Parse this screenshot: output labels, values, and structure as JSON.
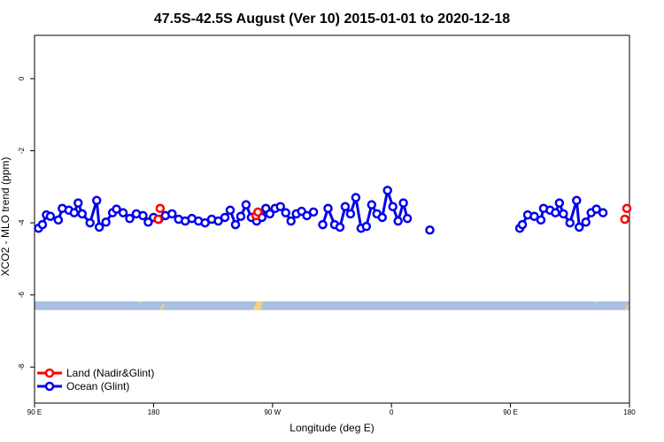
{
  "chart_data": {
    "type": "scatter",
    "title": "47.5S-42.5S August (Ver 10)   2015-01-01 to 2020-12-18",
    "xlabel": "Longitude (deg E)",
    "ylabel": "XCO2 - MLO trend (ppm)",
    "xticks": [
      "90 E",
      "180",
      "90 W",
      "0",
      "90 E",
      "180"
    ],
    "yticks": [
      "0",
      "-2",
      "-4",
      "-6",
      "-8"
    ],
    "ylim": [
      -9.0,
      1.2
    ],
    "legend_position": "bottom-left",
    "series": [
      {
        "name": "Land (Nadir&Glint)",
        "color": "#ff0000",
        "points": [
          [
            -176.5,
            -3.9
          ],
          [
            -175.0,
            -3.6
          ],
          [
            -102.5,
            -3.8
          ],
          [
            -101.0,
            -3.7
          ],
          [
            176.5,
            -3.9
          ],
          [
            178.0,
            -3.6
          ]
        ]
      },
      {
        "name": "Ocean (Glint)",
        "color": "#0000ee",
        "segments": [
          [
            [
              93,
              -4.15
            ],
            [
              96,
              -4.05
            ],
            [
              99,
              -3.78
            ],
            [
              102,
              -3.82
            ],
            [
              108,
              -3.92
            ],
            [
              111,
              -3.6
            ],
            [
              116,
              -3.65
            ],
            [
              120,
              -3.72
            ],
            [
              123,
              -3.45
            ],
            [
              126,
              -3.75
            ],
            [
              132,
              -4.0
            ],
            [
              137,
              -3.38
            ],
            [
              139,
              -4.12
            ],
            [
              144,
              -3.98
            ],
            [
              149,
              -3.72
            ],
            [
              152,
              -3.62
            ],
            [
              157,
              -3.72
            ],
            [
              162,
              -3.88
            ],
            [
              167,
              -3.75
            ],
            [
              172,
              -3.8
            ],
            [
              176,
              -3.98
            ],
            [
              180,
              -3.85
            ],
            [
              -176,
              -3.9
            ],
            [
              -171,
              -3.8
            ],
            [
              -166,
              -3.75
            ],
            [
              -161,
              -3.9
            ],
            [
              -156,
              -3.95
            ],
            [
              -151,
              -3.88
            ],
            [
              -146,
              -3.95
            ],
            [
              -141,
              -4.0
            ],
            [
              -136,
              -3.9
            ],
            [
              -131,
              -3.95
            ],
            [
              -126,
              -3.85
            ],
            [
              -122,
              -3.65
            ],
            [
              -118,
              -4.05
            ],
            [
              -114,
              -3.82
            ],
            [
              -110,
              -3.5
            ],
            [
              -106,
              -3.85
            ],
            [
              -102,
              -3.95
            ],
            [
              -98,
              -3.85
            ],
            [
              -95,
              -3.6
            ],
            [
              -92,
              -3.75
            ],
            [
              -88,
              -3.6
            ],
            [
              -84,
              -3.55
            ],
            [
              -80,
              -3.72
            ],
            [
              -76,
              -3.95
            ],
            [
              -72,
              -3.75
            ],
            [
              -68,
              -3.68
            ],
            [
              -64,
              -3.8
            ],
            [
              -59,
              -3.7
            ]
          ],
          [
            [
              -52,
              -4.05
            ],
            [
              -48,
              -3.6
            ],
            [
              -43,
              -4.05
            ],
            [
              -39,
              -4.12
            ],
            [
              -35,
              -3.55
            ],
            [
              -31,
              -3.75
            ],
            [
              -27,
              -3.3
            ],
            [
              -23,
              -4.15
            ],
            [
              -19,
              -4.1
            ],
            [
              -15,
              -3.5
            ],
            [
              -11,
              -3.75
            ],
            [
              -7,
              -3.85
            ],
            [
              -3,
              -3.1
            ],
            [
              1,
              -3.55
            ],
            [
              5,
              -3.95
            ],
            [
              9,
              -3.45
            ],
            [
              12,
              -3.88
            ]
          ],
          [
            [
              29,
              -4.2
            ]
          ],
          [
            [
              97,
              -4.15
            ],
            [
              99,
              -4.05
            ],
            [
              103,
              -3.78
            ],
            [
              108,
              -3.82
            ],
            [
              113,
              -3.92
            ],
            [
              115,
              -3.6
            ],
            [
              120,
              -3.65
            ],
            [
              124,
              -3.72
            ],
            [
              127,
              -3.45
            ],
            [
              130,
              -3.75
            ],
            [
              135,
              -4.0
            ],
            [
              140,
              -3.38
            ],
            [
              142,
              -4.12
            ],
            [
              147,
              -3.98
            ],
            [
              151,
              -3.72
            ],
            [
              155,
              -3.62
            ],
            [
              160,
              -3.72
            ]
          ]
        ]
      }
    ],
    "reference_band": {
      "ymin": -6.42,
      "ymax": -6.18,
      "color": "#a8bfe0",
      "land_color": "#f2d27a"
    }
  }
}
